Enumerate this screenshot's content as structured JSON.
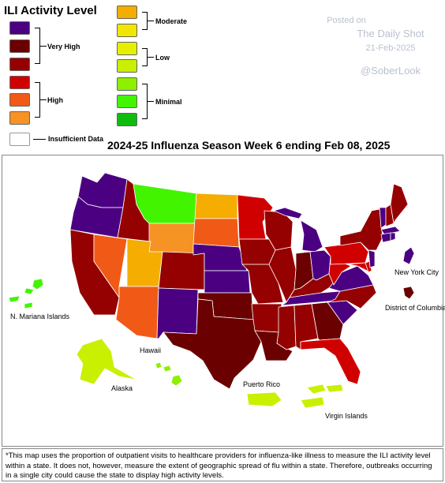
{
  "legend": {
    "title": "ILI Activity Level",
    "colors": {
      "l13": "#4b0082",
      "l12": "#6b0000",
      "l11": "#950000",
      "l10": "#d10000",
      "l9": "#f05a16",
      "l8": "#f59324",
      "l7": "#f4ad00",
      "l6": "#f2e600",
      "l5": "#e5f000",
      "l4": "#c8f000",
      "l3": "#8cf000",
      "l2": "#42f400",
      "l1": "#10bb10",
      "insufficient": "#ffffff"
    },
    "groups": {
      "very_high": "Very High",
      "high": "High",
      "moderate": "Moderate",
      "low": "Low",
      "minimal": "Minimal",
      "insufficient": "Insufficient Data"
    }
  },
  "watermark": {
    "posted": "Posted on",
    "source": "The Daily Shot",
    "date": "21-Feb-2025",
    "handle": "@SoberLook"
  },
  "map": {
    "title": "2024-25 Influenza Season Week 6 ending Feb 08, 2025",
    "labels": {
      "new_york_city": "New York City",
      "district_of_columbia": "District of Columbia",
      "mariana": "N. Mariana Islands",
      "hawaii": "Hawaii",
      "alaska": "Alaska",
      "puerto_rico": "Puerto Rico",
      "virgin_islands": "Virgin Islands"
    }
  },
  "footnote": "*This map uses the proportion of outpatient visits to healthcare providers for influenza-like illness to measure the ILI activity level within a state. It does not, however, measure the extent of geographic spread of flu within a state. Therefore, outbreaks occurring in a single city could cause the state to display high activity levels."
}
